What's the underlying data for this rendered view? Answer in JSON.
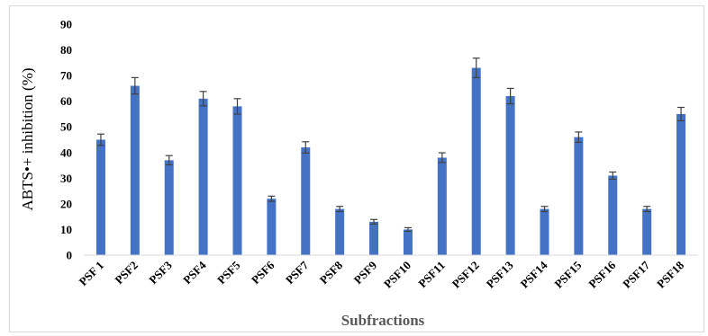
{
  "chart_data": {
    "type": "bar",
    "title": "",
    "xlabel": "Subfractions",
    "ylabel": "ABTS•+ inhibition (%)",
    "ylim": [
      0,
      90
    ],
    "yticks": [
      0,
      10,
      20,
      30,
      40,
      50,
      60,
      70,
      80,
      90
    ],
    "grid": false,
    "legend": "none",
    "bar_color": "#4472C4",
    "categories": [
      "PSF 1",
      "PSF2",
      "PSF3",
      "PSF4",
      "PSF5",
      "PSF6",
      "PSF7",
      "PSF8",
      "PSF9",
      "PSF10",
      "PSF11",
      "PSF12",
      "PSF13",
      "PSF14",
      "PSF15",
      "PSF16",
      "PSF17",
      "PSF18"
    ],
    "values": [
      45,
      66,
      37,
      61,
      58,
      22,
      42,
      18,
      13,
      10,
      38,
      73,
      62,
      18,
      46,
      31,
      18,
      55
    ],
    "errors": [
      2.2,
      3.2,
      1.8,
      2.8,
      3.0,
      1.0,
      2.2,
      1.0,
      0.9,
      0.7,
      1.9,
      3.8,
      3.0,
      1.0,
      2.0,
      1.4,
      1.0,
      2.6
    ]
  }
}
